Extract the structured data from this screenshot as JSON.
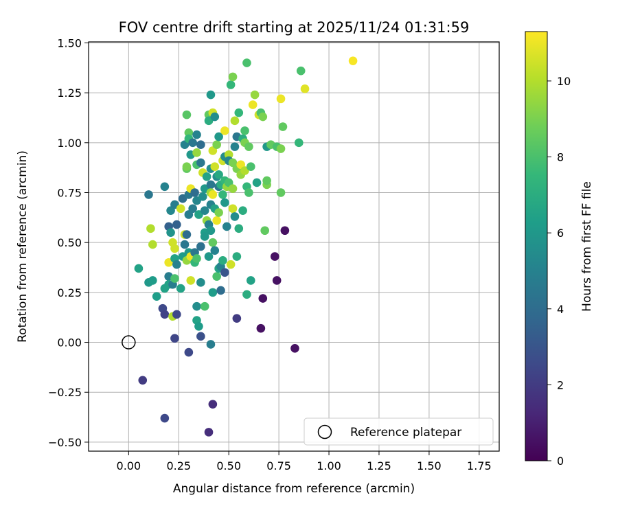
{
  "chart_data": {
    "type": "scatter",
    "title": "FOV centre drift starting at 2025/11/24 01:31:59",
    "xlabel": "Angular distance from reference (arcmin)",
    "ylabel": "Rotation from reference (arcmin)",
    "xlim": [
      -0.2,
      1.85
    ],
    "ylim": [
      -0.545,
      1.505
    ],
    "xticks": [
      0.0,
      0.25,
      0.5,
      0.75,
      1.0,
      1.25,
      1.5,
      1.75
    ],
    "xtick_labels": [
      "0.00",
      "0.25",
      "0.50",
      "0.75",
      "1.00",
      "1.25",
      "1.50",
      "1.75"
    ],
    "yticks": [
      -0.5,
      -0.25,
      0.0,
      0.25,
      0.5,
      0.75,
      1.0,
      1.25,
      1.5
    ],
    "ytick_labels": [
      "−0.50",
      "−0.25",
      "0.00",
      "0.25",
      "0.50",
      "0.75",
      "1.00",
      "1.25",
      "1.50"
    ],
    "grid": true,
    "legend": {
      "position": "bottom-right",
      "entries": [
        "Reference platepar"
      ]
    },
    "reference_point": {
      "x": 0.0,
      "y": 0.0,
      "label": "Reference platepar"
    },
    "colorbar": {
      "label": "Hours from first FF file",
      "min": 0,
      "max": 11.3,
      "ticks": [
        0,
        2,
        4,
        6,
        8,
        10
      ],
      "tick_labels": [
        "0",
        "2",
        "4",
        "6",
        "8",
        "10"
      ],
      "colormap": "viridis"
    },
    "colormap_stops": [
      "#440154",
      "#482878",
      "#3e4989",
      "#31688e",
      "#26828e",
      "#1f9e89",
      "#35b779",
      "#6ece58",
      "#b5de2b",
      "#fde725"
    ],
    "points": [
      {
        "x": 0.05,
        "y": 0.37,
        "c": 6.5
      },
      {
        "x": 0.1,
        "y": 0.74,
        "c": 4.5
      },
      {
        "x": 0.1,
        "y": 0.3,
        "c": 6.0
      },
      {
        "x": 0.11,
        "y": 0.57,
        "c": 10.0
      },
      {
        "x": 0.12,
        "y": 0.49,
        "c": 10.0
      },
      {
        "x": 0.12,
        "y": 0.31,
        "c": 6.2
      },
      {
        "x": 0.07,
        "y": -0.19,
        "c": 2.0
      },
      {
        "x": 0.14,
        "y": 0.23,
        "c": 6.3
      },
      {
        "x": 0.17,
        "y": 0.17,
        "c": 2.5
      },
      {
        "x": 0.18,
        "y": 0.14,
        "c": 2.3
      },
      {
        "x": 0.18,
        "y": 0.27,
        "c": 6.5
      },
      {
        "x": 0.18,
        "y": 0.78,
        "c": 5.0
      },
      {
        "x": 0.18,
        "y": -0.38,
        "c": 2.5
      },
      {
        "x": 0.2,
        "y": 0.58,
        "c": 3.5
      },
      {
        "x": 0.2,
        "y": 0.33,
        "c": 4.8
      },
      {
        "x": 0.2,
        "y": 0.29,
        "c": 6.5
      },
      {
        "x": 0.2,
        "y": 0.4,
        "c": 11.0
      },
      {
        "x": 0.21,
        "y": 0.55,
        "c": 5.8
      },
      {
        "x": 0.21,
        "y": 0.66,
        "c": 5.2
      },
      {
        "x": 0.22,
        "y": 0.5,
        "c": 10.5
      },
      {
        "x": 0.22,
        "y": 0.13,
        "c": 10.0
      },
      {
        "x": 0.22,
        "y": 0.29,
        "c": 4.8
      },
      {
        "x": 0.23,
        "y": 0.47,
        "c": 10.5
      },
      {
        "x": 0.23,
        "y": 0.42,
        "c": 6.5
      },
      {
        "x": 0.23,
        "y": 0.69,
        "c": 4.8
      },
      {
        "x": 0.23,
        "y": 0.32,
        "c": 8.0
      },
      {
        "x": 0.23,
        "y": 0.02,
        "c": 2.4
      },
      {
        "x": 0.24,
        "y": 0.14,
        "c": 2.5
      },
      {
        "x": 0.24,
        "y": 0.59,
        "c": 3.5
      },
      {
        "x": 0.24,
        "y": 0.39,
        "c": 5.0
      },
      {
        "x": 0.26,
        "y": 0.27,
        "c": 6.5
      },
      {
        "x": 0.26,
        "y": 0.67,
        "c": 10.5
      },
      {
        "x": 0.27,
        "y": 0.72,
        "c": 4.0
      },
      {
        "x": 0.27,
        "y": 0.43,
        "c": 6.2
      },
      {
        "x": 0.28,
        "y": 0.54,
        "c": 10.5
      },
      {
        "x": 0.28,
        "y": 0.49,
        "c": 4.5
      },
      {
        "x": 0.28,
        "y": 0.99,
        "c": 5.0
      },
      {
        "x": 0.29,
        "y": 1.14,
        "c": 8.3
      },
      {
        "x": 0.29,
        "y": 0.87,
        "c": 8.5
      },
      {
        "x": 0.29,
        "y": 0.88,
        "c": 9.0
      },
      {
        "x": 0.29,
        "y": 0.54,
        "c": 4.0
      },
      {
        "x": 0.29,
        "y": 0.41,
        "c": 9.5
      },
      {
        "x": 0.3,
        "y": 1.05,
        "c": 8.5
      },
      {
        "x": 0.3,
        "y": 1.02,
        "c": 7.5
      },
      {
        "x": 0.3,
        "y": 0.74,
        "c": 4.5
      },
      {
        "x": 0.3,
        "y": 0.64,
        "c": 4.8
      },
      {
        "x": 0.3,
        "y": 0.45,
        "c": 6.0
      },
      {
        "x": 0.3,
        "y": -0.05,
        "c": 2.5
      },
      {
        "x": 0.31,
        "y": 0.94,
        "c": 6.0
      },
      {
        "x": 0.31,
        "y": 0.77,
        "c": 11.0
      },
      {
        "x": 0.31,
        "y": 0.43,
        "c": 11.0
      },
      {
        "x": 0.31,
        "y": 0.31,
        "c": 10.5
      },
      {
        "x": 0.32,
        "y": 1.0,
        "c": 4.5
      },
      {
        "x": 0.32,
        "y": 0.67,
        "c": 4.8
      },
      {
        "x": 0.33,
        "y": 0.75,
        "c": 4.0
      },
      {
        "x": 0.33,
        "y": 0.45,
        "c": 4.5
      },
      {
        "x": 0.33,
        "y": 0.4,
        "c": 7.5
      },
      {
        "x": 0.34,
        "y": 1.04,
        "c": 5.0
      },
      {
        "x": 0.34,
        "y": 0.95,
        "c": 9.5
      },
      {
        "x": 0.34,
        "y": 0.89,
        "c": 8.0
      },
      {
        "x": 0.34,
        "y": 0.71,
        "c": 5.2
      },
      {
        "x": 0.34,
        "y": 0.42,
        "c": 8.0
      },
      {
        "x": 0.34,
        "y": 0.11,
        "c": 6.5
      },
      {
        "x": 0.34,
        "y": 0.18,
        "c": 5.5
      },
      {
        "x": 0.35,
        "y": 0.64,
        "c": 6.5
      },
      {
        "x": 0.35,
        "y": 0.08,
        "c": 6.2
      },
      {
        "x": 0.36,
        "y": 0.99,
        "c": 4.0
      },
      {
        "x": 0.36,
        "y": 0.9,
        "c": 4.5
      },
      {
        "x": 0.36,
        "y": 0.48,
        "c": 4.2
      },
      {
        "x": 0.36,
        "y": 0.3,
        "c": 5.5
      },
      {
        "x": 0.36,
        "y": 0.03,
        "c": 2.8
      },
      {
        "x": 0.37,
        "y": 0.85,
        "c": 10.5
      },
      {
        "x": 0.37,
        "y": 0.73,
        "c": 5.5
      },
      {
        "x": 0.38,
        "y": 0.77,
        "c": 6.0
      },
      {
        "x": 0.38,
        "y": 0.66,
        "c": 5.2
      },
      {
        "x": 0.38,
        "y": 0.55,
        "c": 6.3
      },
      {
        "x": 0.38,
        "y": 0.53,
        "c": 6.0
      },
      {
        "x": 0.38,
        "y": 0.18,
        "c": 8.0
      },
      {
        "x": 0.39,
        "y": 0.83,
        "c": 6.5
      },
      {
        "x": 0.39,
        "y": 0.61,
        "c": 9.5
      },
      {
        "x": 0.4,
        "y": 1.14,
        "c": 8.5
      },
      {
        "x": 0.4,
        "y": 1.11,
        "c": 7.0
      },
      {
        "x": 0.4,
        "y": 0.59,
        "c": 5.0
      },
      {
        "x": 0.4,
        "y": 0.43,
        "c": 6.0
      },
      {
        "x": 0.4,
        "y": -0.45,
        "c": 1.5
      },
      {
        "x": 0.41,
        "y": 1.24,
        "c": 6.0
      },
      {
        "x": 0.41,
        "y": 0.87,
        "c": 5.5
      },
      {
        "x": 0.41,
        "y": 0.79,
        "c": 4.5
      },
      {
        "x": 0.41,
        "y": 0.75,
        "c": 9.5
      },
      {
        "x": 0.41,
        "y": 0.69,
        "c": 5.0
      },
      {
        "x": 0.41,
        "y": 0.56,
        "c": 6.0
      },
      {
        "x": 0.41,
        "y": -0.01,
        "c": 4.8
      },
      {
        "x": 0.42,
        "y": 1.15,
        "c": 10.5
      },
      {
        "x": 0.42,
        "y": 0.96,
        "c": 10.5
      },
      {
        "x": 0.42,
        "y": 0.74,
        "c": 11.0
      },
      {
        "x": 0.42,
        "y": 0.5,
        "c": 8.5
      },
      {
        "x": 0.42,
        "y": 0.25,
        "c": 6.2
      },
      {
        "x": 0.42,
        "y": -0.31,
        "c": 1.5
      },
      {
        "x": 0.43,
        "y": 1.13,
        "c": 5.5
      },
      {
        "x": 0.43,
        "y": 0.88,
        "c": 10.5
      },
      {
        "x": 0.43,
        "y": 0.67,
        "c": 6.5
      },
      {
        "x": 0.43,
        "y": 0.46,
        "c": 5.0
      },
      {
        "x": 0.44,
        "y": 0.99,
        "c": 9.0
      },
      {
        "x": 0.44,
        "y": 0.83,
        "c": 5.5
      },
      {
        "x": 0.44,
        "y": 0.61,
        "c": 11.0
      },
      {
        "x": 0.44,
        "y": 0.33,
        "c": 8.0
      },
      {
        "x": 0.45,
        "y": 1.03,
        "c": 6.0
      },
      {
        "x": 0.45,
        "y": 0.84,
        "c": 6.8
      },
      {
        "x": 0.45,
        "y": 0.78,
        "c": 4.5
      },
      {
        "x": 0.45,
        "y": 0.65,
        "c": 9.0
      },
      {
        "x": 0.45,
        "y": 0.37,
        "c": 6.5
      },
      {
        "x": 0.46,
        "y": 0.79,
        "c": 7.0
      },
      {
        "x": 0.46,
        "y": 0.38,
        "c": 5.0
      },
      {
        "x": 0.46,
        "y": 0.26,
        "c": 4.0
      },
      {
        "x": 0.47,
        "y": 0.91,
        "c": 10.5
      },
      {
        "x": 0.47,
        "y": 0.74,
        "c": 7.5
      },
      {
        "x": 0.47,
        "y": 0.41,
        "c": 7.0
      },
      {
        "x": 0.48,
        "y": 1.06,
        "c": 11.0
      },
      {
        "x": 0.48,
        "y": 0.93,
        "c": 5.5
      },
      {
        "x": 0.48,
        "y": 0.81,
        "c": 7.5
      },
      {
        "x": 0.48,
        "y": 0.7,
        "c": 6.0
      },
      {
        "x": 0.48,
        "y": 0.35,
        "c": 3.0
      },
      {
        "x": 0.49,
        "y": 0.78,
        "c": 9.5
      },
      {
        "x": 0.49,
        "y": 0.58,
        "c": 5.0
      },
      {
        "x": 0.5,
        "y": 0.94,
        "c": 10.0
      },
      {
        "x": 0.5,
        "y": 0.91,
        "c": 5.2
      },
      {
        "x": 0.5,
        "y": 0.8,
        "c": 8.0
      },
      {
        "x": 0.51,
        "y": 0.39,
        "c": 10.5
      },
      {
        "x": 0.51,
        "y": 1.29,
        "c": 7.5
      },
      {
        "x": 0.52,
        "y": 1.33,
        "c": 9.0
      },
      {
        "x": 0.52,
        "y": 0.9,
        "c": 9.0
      },
      {
        "x": 0.52,
        "y": 0.77,
        "c": 9.5
      },
      {
        "x": 0.52,
        "y": 0.67,
        "c": 10.5
      },
      {
        "x": 0.53,
        "y": 1.11,
        "c": 10.0
      },
      {
        "x": 0.53,
        "y": 0.98,
        "c": 5.0
      },
      {
        "x": 0.53,
        "y": 0.63,
        "c": 5.5
      },
      {
        "x": 0.54,
        "y": 1.03,
        "c": 4.5
      },
      {
        "x": 0.54,
        "y": 0.87,
        "c": 9.0
      },
      {
        "x": 0.54,
        "y": 0.43,
        "c": 7.0
      },
      {
        "x": 0.54,
        "y": 0.12,
        "c": 2.0
      },
      {
        "x": 0.55,
        "y": 1.15,
        "c": 7.5
      },
      {
        "x": 0.55,
        "y": 0.57,
        "c": 7.0
      },
      {
        "x": 0.56,
        "y": 0.89,
        "c": 11.0
      },
      {
        "x": 0.56,
        "y": 0.84,
        "c": 9.5
      },
      {
        "x": 0.57,
        "y": 1.02,
        "c": 7.0
      },
      {
        "x": 0.57,
        "y": 0.66,
        "c": 7.0
      },
      {
        "x": 0.58,
        "y": 1.06,
        "c": 8.0
      },
      {
        "x": 0.58,
        "y": 1.0,
        "c": 9.0
      },
      {
        "x": 0.58,
        "y": 0.86,
        "c": 10.0
      },
      {
        "x": 0.59,
        "y": 1.4,
        "c": 8.0
      },
      {
        "x": 0.59,
        "y": 0.78,
        "c": 7.5
      },
      {
        "x": 0.59,
        "y": 0.24,
        "c": 7.0
      },
      {
        "x": 0.6,
        "y": 0.98,
        "c": 8.5
      },
      {
        "x": 0.6,
        "y": 0.75,
        "c": 8.0
      },
      {
        "x": 0.61,
        "y": 0.88,
        "c": 8.0
      },
      {
        "x": 0.61,
        "y": 0.31,
        "c": 6.5
      },
      {
        "x": 0.62,
        "y": 1.19,
        "c": 11.0
      },
      {
        "x": 0.63,
        "y": 1.24,
        "c": 9.5
      },
      {
        "x": 0.64,
        "y": 0.8,
        "c": 6.5
      },
      {
        "x": 0.65,
        "y": 1.14,
        "c": 10.5
      },
      {
        "x": 0.66,
        "y": 1.15,
        "c": 8.0
      },
      {
        "x": 0.66,
        "y": 0.07,
        "c": 0.5
      },
      {
        "x": 0.67,
        "y": 1.13,
        "c": 9.0
      },
      {
        "x": 0.67,
        "y": 0.22,
        "c": 0.5
      },
      {
        "x": 0.68,
        "y": 0.56,
        "c": 8.5
      },
      {
        "x": 0.69,
        "y": 0.98,
        "c": 6.0
      },
      {
        "x": 0.69,
        "y": 0.79,
        "c": 9.0
      },
      {
        "x": 0.69,
        "y": 0.81,
        "c": 8.5
      },
      {
        "x": 0.71,
        "y": 0.99,
        "c": 8.5
      },
      {
        "x": 0.73,
        "y": 0.43,
        "c": 0.5
      },
      {
        "x": 0.74,
        "y": 0.31,
        "c": 0.5
      },
      {
        "x": 0.74,
        "y": 0.98,
        "c": 8.0
      },
      {
        "x": 0.76,
        "y": 1.22,
        "c": 11.0
      },
      {
        "x": 0.76,
        "y": 0.97,
        "c": 9.0
      },
      {
        "x": 0.76,
        "y": 0.75,
        "c": 8.5
      },
      {
        "x": 0.77,
        "y": 1.08,
        "c": 8.5
      },
      {
        "x": 0.78,
        "y": 0.56,
        "c": 0.5
      },
      {
        "x": 0.83,
        "y": -0.03,
        "c": 0.5
      },
      {
        "x": 0.85,
        "y": 1.0,
        "c": 7.5
      },
      {
        "x": 0.86,
        "y": 1.36,
        "c": 8.0
      },
      {
        "x": 0.88,
        "y": 1.27,
        "c": 10.8
      },
      {
        "x": 1.12,
        "y": 1.41,
        "c": 11.2
      }
    ]
  }
}
